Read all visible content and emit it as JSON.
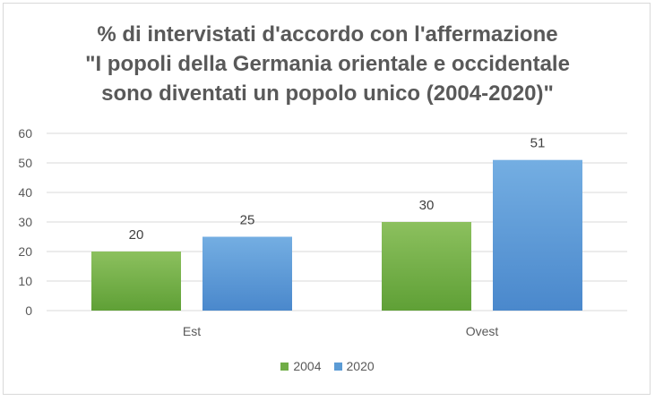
{
  "title_lines": [
    "% di intervistati d'accordo con l'affermazione",
    "\"I popoli della Germania orientale e occidentale",
    "sono diventati un popolo unico (2004-2020)\""
  ],
  "colors": {
    "series_2004": "#70ad47",
    "series_2020": "#5b9bd5",
    "gridline": "#d9d9d9",
    "text": "#595959"
  },
  "chart_data": {
    "type": "bar",
    "title": "% di intervistati d'accordo con l'affermazione \"I popoli della Germania orientale e occidentale sono diventati un popolo unico (2004-2020)\"",
    "categories": [
      "Est",
      "Ovest"
    ],
    "series": [
      {
        "name": "2004",
        "values": [
          20,
          30
        ]
      },
      {
        "name": "2020",
        "values": [
          25,
          51
        ]
      }
    ],
    "ylim": [
      0,
      60
    ],
    "yticks": [
      0,
      10,
      20,
      30,
      40,
      50,
      60
    ],
    "grid": true,
    "legend": "bottom"
  }
}
